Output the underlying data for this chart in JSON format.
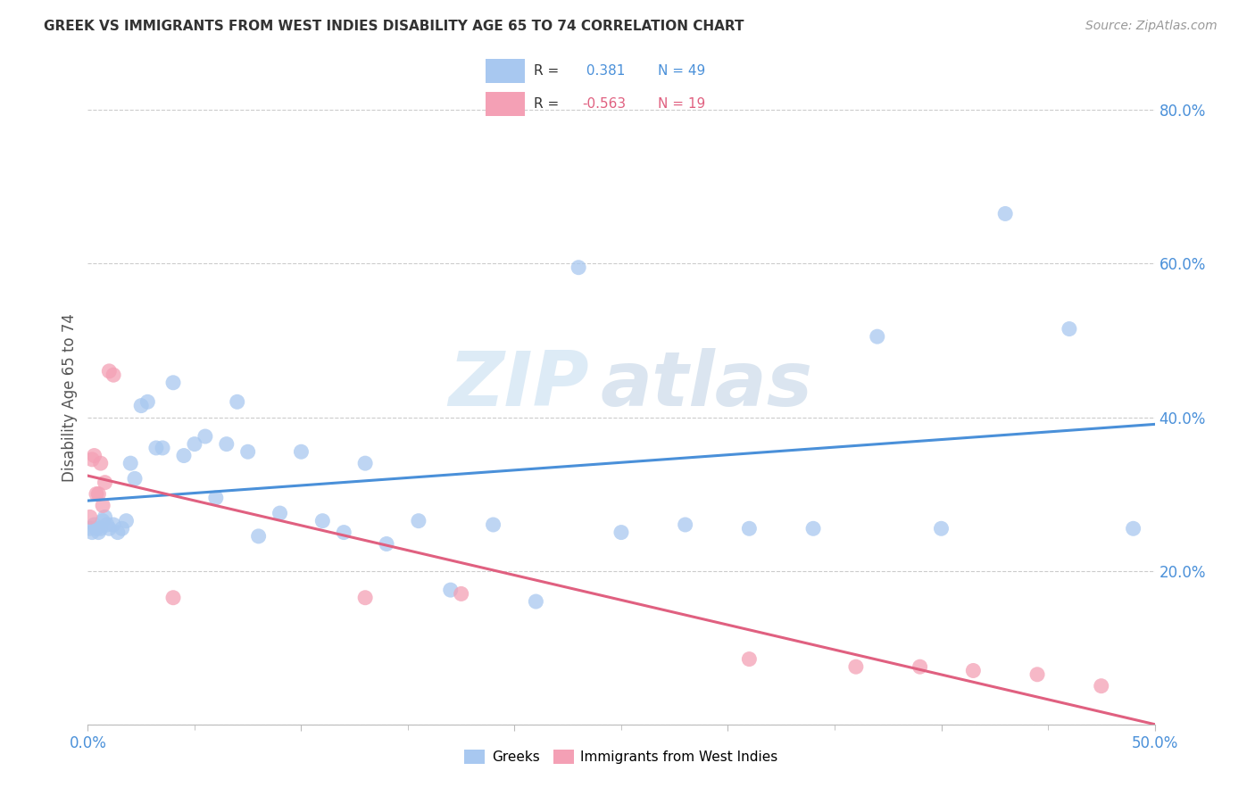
{
  "title": "GREEK VS IMMIGRANTS FROM WEST INDIES DISABILITY AGE 65 TO 74 CORRELATION CHART",
  "source": "Source: ZipAtlas.com",
  "ylabel": "Disability Age 65 to 74",
  "xlim": [
    0.0,
    0.5
  ],
  "ylim": [
    0.0,
    0.85
  ],
  "xticks": [
    0.0,
    0.1,
    0.2,
    0.3,
    0.4,
    0.5
  ],
  "xticklabels": [
    "0.0%",
    "",
    "",
    "",
    "",
    "50.0%"
  ],
  "yticks": [
    0.0,
    0.2,
    0.4,
    0.6,
    0.8
  ],
  "yticklabels": [
    "",
    "20.0%",
    "40.0%",
    "60.0%",
    "80.0%"
  ],
  "blue_color": "#a8c8f0",
  "pink_color": "#f4a0b5",
  "blue_line_color": "#4a90d9",
  "pink_line_color": "#e06080",
  "tick_color": "#4a90d9",
  "r_blue": 0.381,
  "n_blue": 49,
  "r_pink": -0.563,
  "n_pink": 19,
  "watermark_zip": "ZIP",
  "watermark_atlas": "atlas",
  "legend_label_blue": "Greeks",
  "legend_label_pink": "Immigrants from West Indies",
  "blue_points_x": [
    0.001,
    0.002,
    0.003,
    0.004,
    0.005,
    0.006,
    0.007,
    0.008,
    0.009,
    0.01,
    0.012,
    0.014,
    0.016,
    0.018,
    0.02,
    0.022,
    0.025,
    0.028,
    0.032,
    0.035,
    0.04,
    0.045,
    0.05,
    0.055,
    0.06,
    0.065,
    0.07,
    0.075,
    0.08,
    0.09,
    0.1,
    0.11,
    0.12,
    0.13,
    0.14,
    0.155,
    0.17,
    0.19,
    0.21,
    0.23,
    0.25,
    0.28,
    0.31,
    0.34,
    0.37,
    0.4,
    0.43,
    0.46,
    0.49
  ],
  "blue_points_y": [
    0.255,
    0.25,
    0.26,
    0.255,
    0.25,
    0.255,
    0.265,
    0.27,
    0.26,
    0.255,
    0.26,
    0.25,
    0.255,
    0.265,
    0.34,
    0.32,
    0.415,
    0.42,
    0.36,
    0.36,
    0.445,
    0.35,
    0.365,
    0.375,
    0.295,
    0.365,
    0.42,
    0.355,
    0.245,
    0.275,
    0.355,
    0.265,
    0.25,
    0.34,
    0.235,
    0.265,
    0.175,
    0.26,
    0.16,
    0.595,
    0.25,
    0.26,
    0.255,
    0.255,
    0.505,
    0.255,
    0.665,
    0.515,
    0.255
  ],
  "pink_points_x": [
    0.001,
    0.002,
    0.003,
    0.004,
    0.005,
    0.006,
    0.007,
    0.008,
    0.01,
    0.012,
    0.04,
    0.13,
    0.175,
    0.31,
    0.36,
    0.39,
    0.415,
    0.445,
    0.475
  ],
  "pink_points_y": [
    0.27,
    0.345,
    0.35,
    0.3,
    0.3,
    0.34,
    0.285,
    0.315,
    0.46,
    0.455,
    0.165,
    0.165,
    0.17,
    0.085,
    0.075,
    0.075,
    0.07,
    0.065,
    0.05
  ]
}
